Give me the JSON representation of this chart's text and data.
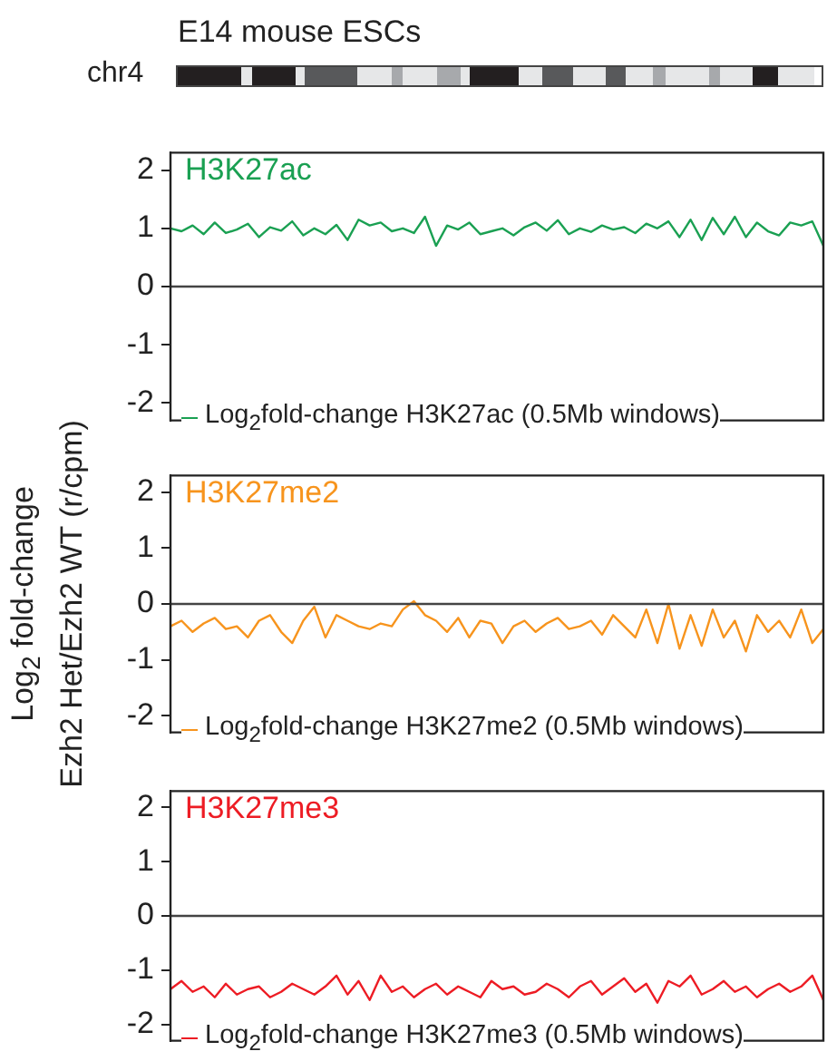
{
  "chart_data": [
    {
      "type": "line",
      "title": "H3K27ac",
      "annotations": [
        "E14 mouse ESCs",
        "chr4"
      ],
      "categories": [
        null,
        null,
        null,
        null,
        null,
        null,
        null,
        null,
        null,
        null,
        null,
        null,
        null,
        null,
        null,
        null,
        null,
        null,
        null,
        null,
        null,
        null,
        null,
        null,
        null,
        null,
        null,
        null,
        null,
        null,
        null,
        null,
        null,
        null,
        null,
        null,
        null,
        null,
        null,
        null,
        null,
        null,
        null,
        null,
        null,
        null,
        null,
        null,
        null,
        null,
        null,
        null,
        null,
        null,
        null,
        null,
        null,
        null,
        null,
        null
      ],
      "series": [
        {
          "name": "Log$_{2}$fold-change H3K27ac (0.5Mb windows)",
          "color": "#1aa052",
          "values": [
            1.0,
            0.95,
            1.05,
            0.9,
            1.1,
            0.92,
            0.98,
            1.08,
            0.85,
            1.02,
            0.96,
            1.12,
            0.88,
            1.0,
            0.9,
            1.06,
            0.8,
            1.15,
            1.05,
            1.1,
            0.95,
            1.0,
            0.92,
            1.2,
            0.7,
            1.05,
            0.98,
            1.1,
            0.9,
            0.95,
            1.0,
            0.88,
            1.02,
            1.1,
            0.96,
            1.14,
            0.9,
            1.0,
            0.94,
            1.05,
            0.98,
            1.02,
            0.92,
            1.08,
            1.0,
            1.12,
            0.85,
            1.15,
            0.8,
            1.18,
            0.9,
            1.2,
            0.85,
            1.1,
            0.95,
            0.88,
            1.1,
            1.05,
            1.12,
            0.7
          ]
        }
      ],
      "ylim": [
        -2.3,
        2.3
      ],
      "yticks": [
        -2,
        -1,
        0,
        1,
        2
      ],
      "ref_lines": [
        {
          "axis": "y",
          "value": 0
        }
      ],
      "legend": "bottom left",
      "tick_labels": "y",
      "marker": "none",
      "line_style": "solid"
    },
    {
      "type": "line",
      "title": "H3K27me2",
      "ylabel": "Log$_{2}$ fold-change\nEzh2 Het/Ezh2 WT (r/cpm)",
      "categories": [
        null,
        null,
        null,
        null,
        null,
        null,
        null,
        null,
        null,
        null,
        null,
        null,
        null,
        null,
        null,
        null,
        null,
        null,
        null,
        null,
        null,
        null,
        null,
        null,
        null,
        null,
        null,
        null,
        null,
        null,
        null,
        null,
        null,
        null,
        null,
        null,
        null,
        null,
        null,
        null,
        null,
        null,
        null,
        null,
        null,
        null,
        null,
        null,
        null,
        null,
        null,
        null,
        null,
        null,
        null,
        null,
        null,
        null,
        null,
        null
      ],
      "series": [
        {
          "name": "Log$_{2}$fold-change H3K27me2 (0.5Mb windows)",
          "color": "#f7941d",
          "values": [
            -0.4,
            -0.3,
            -0.5,
            -0.35,
            -0.25,
            -0.45,
            -0.4,
            -0.6,
            -0.3,
            -0.2,
            -0.5,
            -0.7,
            -0.3,
            -0.05,
            -0.6,
            -0.2,
            -0.3,
            -0.4,
            -0.45,
            -0.35,
            -0.4,
            -0.1,
            0.05,
            -0.2,
            -0.3,
            -0.5,
            -0.25,
            -0.6,
            -0.3,
            -0.35,
            -0.7,
            -0.4,
            -0.3,
            -0.5,
            -0.35,
            -0.25,
            -0.45,
            -0.4,
            -0.3,
            -0.55,
            -0.2,
            -0.4,
            -0.6,
            -0.1,
            -0.7,
            0.0,
            -0.8,
            -0.2,
            -0.75,
            -0.1,
            -0.6,
            -0.3,
            -0.85,
            -0.2,
            -0.5,
            -0.3,
            -0.6,
            -0.1,
            -0.7,
            -0.45
          ]
        }
      ],
      "ylim": [
        -2.3,
        2.3
      ],
      "yticks": [
        -2,
        -1,
        0,
        1,
        2
      ],
      "ref_lines": [
        {
          "axis": "y",
          "value": 0
        }
      ],
      "legend": "bottom left",
      "tick_labels": "y",
      "marker": "none",
      "line_style": "solid"
    },
    {
      "type": "line",
      "title": "H3K27me3",
      "categories": [
        null,
        null,
        null,
        null,
        null,
        null,
        null,
        null,
        null,
        null,
        null,
        null,
        null,
        null,
        null,
        null,
        null,
        null,
        null,
        null,
        null,
        null,
        null,
        null,
        null,
        null,
        null,
        null,
        null,
        null,
        null,
        null,
        null,
        null,
        null,
        null,
        null,
        null,
        null,
        null,
        null,
        null,
        null,
        null,
        null,
        null,
        null,
        null,
        null,
        null,
        null,
        null,
        null,
        null,
        null,
        null,
        null,
        null,
        null,
        null
      ],
      "series": [
        {
          "name": "Log$_{2}$fold-change H3K27me3 (0.5Mb windows)",
          "color": "#ed1c24",
          "values": [
            -1.35,
            -1.2,
            -1.4,
            -1.3,
            -1.5,
            -1.25,
            -1.45,
            -1.35,
            -1.3,
            -1.5,
            -1.4,
            -1.25,
            -1.35,
            -1.45,
            -1.3,
            -1.1,
            -1.45,
            -1.2,
            -1.55,
            -1.1,
            -1.4,
            -1.3,
            -1.5,
            -1.35,
            -1.25,
            -1.45,
            -1.3,
            -1.4,
            -1.5,
            -1.2,
            -1.35,
            -1.3,
            -1.45,
            -1.4,
            -1.25,
            -1.35,
            -1.5,
            -1.3,
            -1.2,
            -1.45,
            -1.3,
            -1.15,
            -1.4,
            -1.25,
            -1.6,
            -1.2,
            -1.3,
            -1.1,
            -1.45,
            -1.35,
            -1.2,
            -1.4,
            -1.3,
            -1.5,
            -1.35,
            -1.25,
            -1.4,
            -1.3,
            -1.1,
            -1.55
          ]
        }
      ],
      "ylim": [
        -2.3,
        2.3
      ],
      "yticks": [
        -2,
        -1,
        0,
        1,
        2
      ],
      "ref_lines": [
        {
          "axis": "y",
          "value": 0
        }
      ],
      "legend": "bottom left",
      "tick_labels": "y",
      "marker": "none",
      "line_style": "solid"
    }
  ]
}
